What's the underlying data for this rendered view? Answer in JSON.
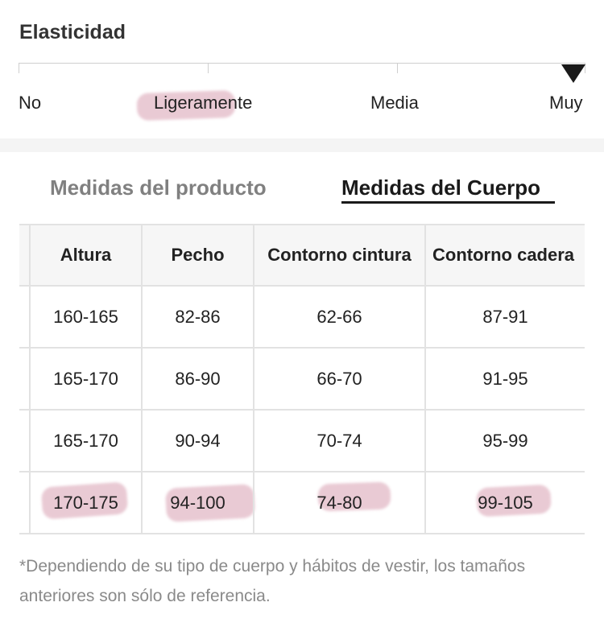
{
  "elasticity": {
    "title": "Elasticidad",
    "levels": [
      "No",
      "Ligeramente",
      "Media",
      "Muy"
    ],
    "selected_level": "Muy"
  },
  "tabs": {
    "product_label": "Medidas del producto",
    "body_label": "Medidas del Cuerpo",
    "active": "Medidas del Cuerpo"
  },
  "table": {
    "headers": [
      "Altura",
      "Pecho",
      "Contorno cintura",
      "Contorno cadera"
    ],
    "rows": [
      [
        "160-165",
        "82-86",
        "62-66",
        "87-91"
      ],
      [
        "165-170",
        "86-90",
        "66-70",
        "91-95"
      ],
      [
        "165-170",
        "90-94",
        "70-74",
        "95-99"
      ],
      [
        "170-175",
        "94-100",
        "74-80",
        "99-105"
      ]
    ]
  },
  "note": "*Dependiendo de su tipo de cuerpo y hábitos de vestir, los tamaños anteriores son sólo de referencia.",
  "colors": {
    "highlight": "#c7758f",
    "active_tab": "#1a1a1a",
    "inactive_tab": "#808080",
    "note_text": "#8a8a8a"
  }
}
